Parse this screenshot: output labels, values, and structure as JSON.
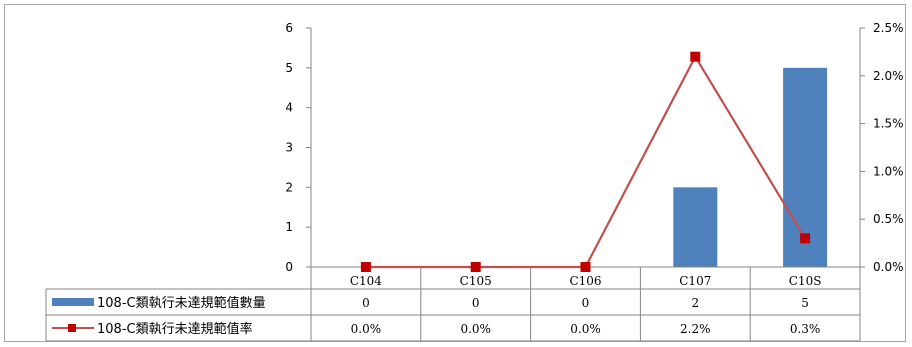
{
  "chart_data": {
    "type": "bar",
    "categories": [
      "C104",
      "C105",
      "C106",
      "C107",
      "C10S"
    ],
    "series": [
      {
        "name": "108-C類執行未達規範值數量",
        "type": "bar",
        "axis": "left",
        "color": "#4f81bd",
        "values": [
          0,
          0,
          0,
          2,
          5
        ],
        "table_values": [
          "0",
          "0",
          "0",
          "2",
          "5"
        ]
      },
      {
        "name": "108-C類執行未達規範值率",
        "type": "line",
        "axis": "right",
        "color": "#c0504d",
        "values": [
          0.0,
          0.0,
          0.0,
          2.2,
          0.3
        ],
        "table_values": [
          "0.0%",
          "0.0%",
          "0.0%",
          "2.2%",
          "0.3%"
        ]
      }
    ],
    "left_axis": {
      "ylim": [
        0,
        6
      ],
      "ticks": [
        "0",
        "1",
        "2",
        "3",
        "4",
        "5",
        "6"
      ]
    },
    "right_axis": {
      "ylim": [
        0,
        2.5
      ],
      "ticks": [
        "0.0%",
        "0.5%",
        "1.0%",
        "1.5%",
        "2.0%",
        "2.5%"
      ]
    },
    "grid": false,
    "legend": "data-table"
  }
}
